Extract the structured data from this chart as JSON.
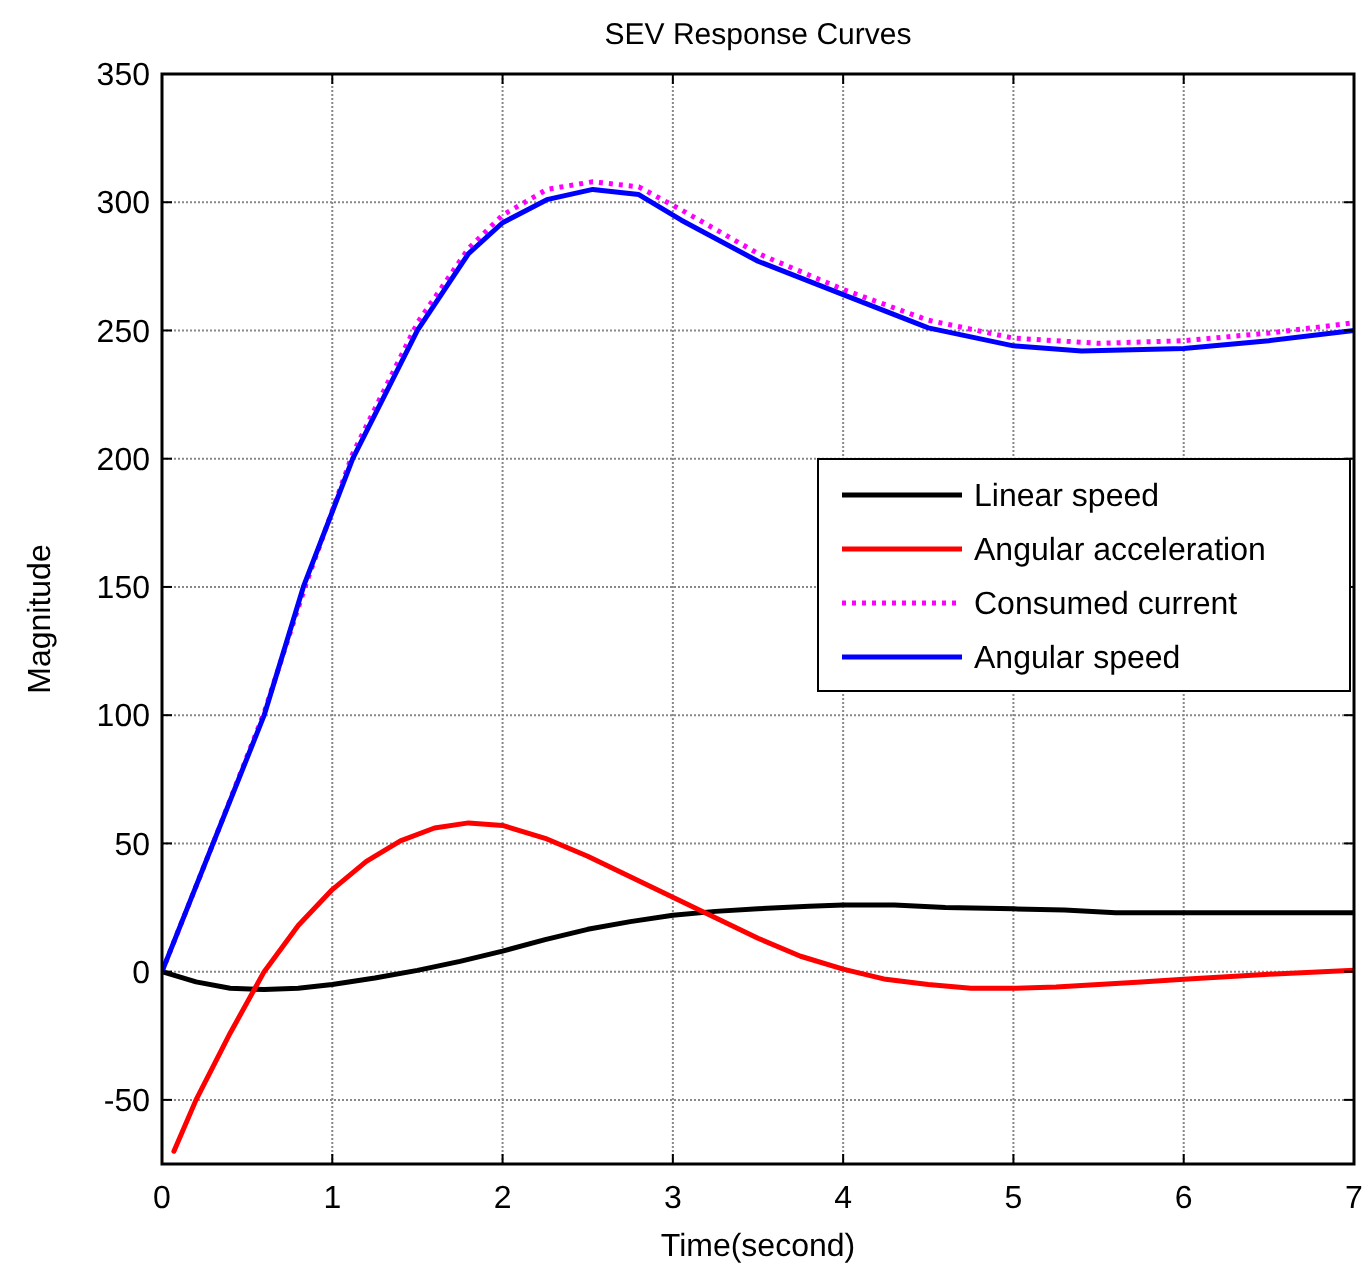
{
  "chart_data": {
    "type": "line",
    "title": "SEV Response Curves",
    "xlabel": "Time(second)",
    "ylabel": "Magnitude",
    "xlim": [
      0,
      7
    ],
    "ylim": [
      -75,
      350
    ],
    "xticks": [
      0,
      1,
      2,
      3,
      4,
      5,
      6,
      7
    ],
    "yticks": [
      -50,
      0,
      50,
      100,
      150,
      200,
      250,
      300,
      350
    ],
    "grid": true,
    "legend": "right",
    "series": [
      {
        "name": "Linear speed",
        "color": "#000000",
        "line_style": "solid",
        "x": [
          0,
          0.2,
          0.4,
          0.6,
          0.8,
          1,
          1.25,
          1.5,
          1.75,
          2,
          2.25,
          2.5,
          2.75,
          3,
          3.25,
          3.5,
          3.8,
          4,
          4.3,
          4.6,
          5,
          5.3,
          5.6,
          6,
          6.5,
          7
        ],
        "values": [
          0,
          -4,
          -6.5,
          -7,
          -6.5,
          -5,
          -2.5,
          0.5,
          4,
          8,
          12.5,
          16.5,
          19.5,
          22,
          23.5,
          24.5,
          25.5,
          26,
          26,
          25,
          24.5,
          24,
          23,
          23,
          23,
          23
        ]
      },
      {
        "name": "Angular acceleration",
        "color": "#ff0000",
        "line_style": "solid",
        "x": [
          0.07,
          0.2,
          0.4,
          0.6,
          0.8,
          1,
          1.2,
          1.4,
          1.6,
          1.8,
          2,
          2.25,
          2.5,
          2.75,
          3,
          3.25,
          3.5,
          3.75,
          4,
          4.25,
          4.5,
          4.75,
          5,
          5.25,
          5.5,
          5.75,
          6,
          6.5,
          7
        ],
        "values": [
          -70,
          -50,
          -24,
          0,
          18,
          32,
          43,
          51,
          56,
          58,
          57,
          52,
          45,
          37,
          29,
          21,
          13,
          6,
          1,
          -3,
          -5,
          -6.5,
          -6.5,
          -6,
          -5,
          -4,
          -3,
          -1,
          0.5
        ]
      },
      {
        "name": "Consumed current",
        "color": "#ff00ff",
        "line_style": "dotted",
        "x": [
          0,
          0.3,
          0.6,
          0.85,
          1.12,
          1.5,
          1.8,
          2,
          2.26,
          2.53,
          2.8,
          3.05,
          3.5,
          4,
          4.5,
          5,
          5.5,
          6,
          6.5,
          7
        ],
        "values": [
          0,
          50,
          101,
          152,
          202,
          253,
          282,
          295,
          305,
          308,
          306,
          297,
          280,
          266,
          254,
          247,
          245,
          246,
          249,
          253
        ]
      },
      {
        "name": "Angular speed",
        "color": "#0000ff",
        "line_style": "solid",
        "x": [
          0,
          0.3,
          0.6,
          0.83,
          1.12,
          1.5,
          1.8,
          2,
          2.26,
          2.53,
          2.8,
          3.05,
          3.5,
          4,
          4.5,
          5,
          5.4,
          6,
          6.5,
          7
        ],
        "values": [
          0,
          50,
          100,
          150,
          200,
          250,
          280,
          292,
          301,
          305,
          303,
          293,
          277,
          264,
          251,
          244,
          242,
          243,
          246,
          250
        ]
      }
    ]
  }
}
